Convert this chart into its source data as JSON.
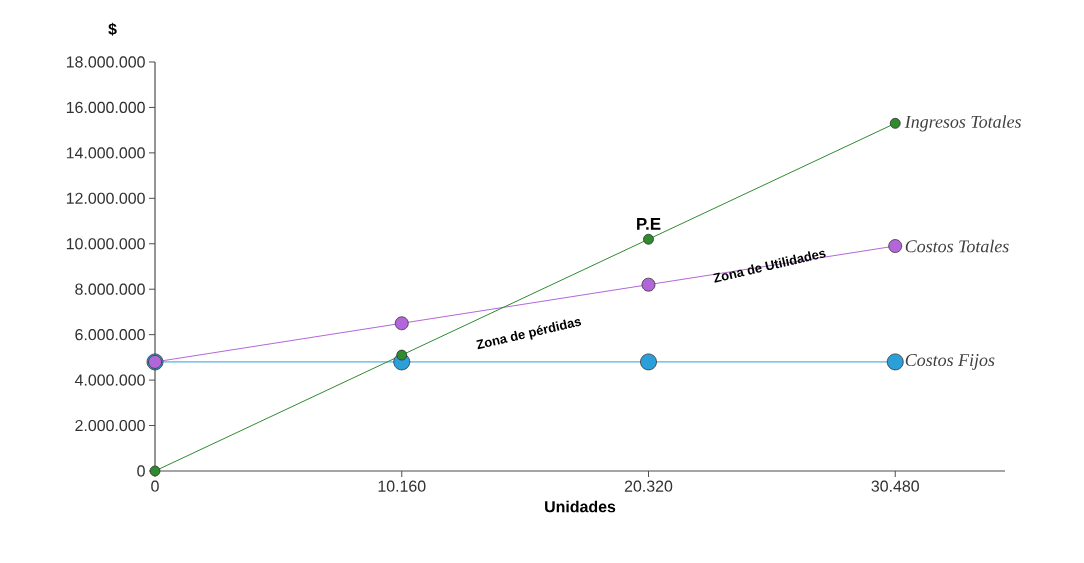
{
  "chart_data": {
    "type": "line",
    "xlabel": "Unidades",
    "ylabel": "$",
    "x": [
      0,
      10160,
      20320,
      30480
    ],
    "xlim": [
      0,
      35000
    ],
    "xticks": [
      0,
      {
        "value": 10160,
        "label": "10.160"
      },
      {
        "value": 20320,
        "label": "20.320"
      },
      {
        "value": 30480,
        "label": "30.480"
      }
    ],
    "ylim": [
      0,
      18000000
    ],
    "yticks": [
      0,
      {
        "value": 2000000,
        "label": "2.000.000"
      },
      {
        "value": 4000000,
        "label": "4.000.000"
      },
      {
        "value": 6000000,
        "label": "6.000.000"
      },
      {
        "value": 8000000,
        "label": "8.000.000"
      },
      {
        "value": 10000000,
        "label": "10.000.000"
      },
      {
        "value": 12000000,
        "label": "12.000.000"
      },
      {
        "value": 14000000,
        "label": "14.000.000"
      },
      {
        "value": 16000000,
        "label": "16.000.000"
      },
      {
        "value": 18000000,
        "label": "18.000.000"
      }
    ],
    "series": [
      {
        "name": "Ingresos Totales",
        "color": "#2e8b2e",
        "values": [
          0,
          5100000,
          10200000,
          15300000
        ]
      },
      {
        "name": "Costos Totales",
        "color": "#b366d9",
        "values": [
          4800000,
          6500000,
          8200000,
          9900000
        ]
      },
      {
        "name": "Costos Fijos",
        "color": "#2b9fd9",
        "values": [
          4800000,
          4800000,
          4800000,
          4800000
        ]
      }
    ],
    "annotations": [
      {
        "text": "P.E",
        "x": 20320,
        "y": 10200000
      },
      "Zona de pérdidas",
      {
        "text": "Zona de Utilidades",
        "x": 25300,
        "y": 9050000
      }
    ],
    "grid": false,
    "legend": false,
    "marker": "circle",
    "line_style": "solid"
  }
}
